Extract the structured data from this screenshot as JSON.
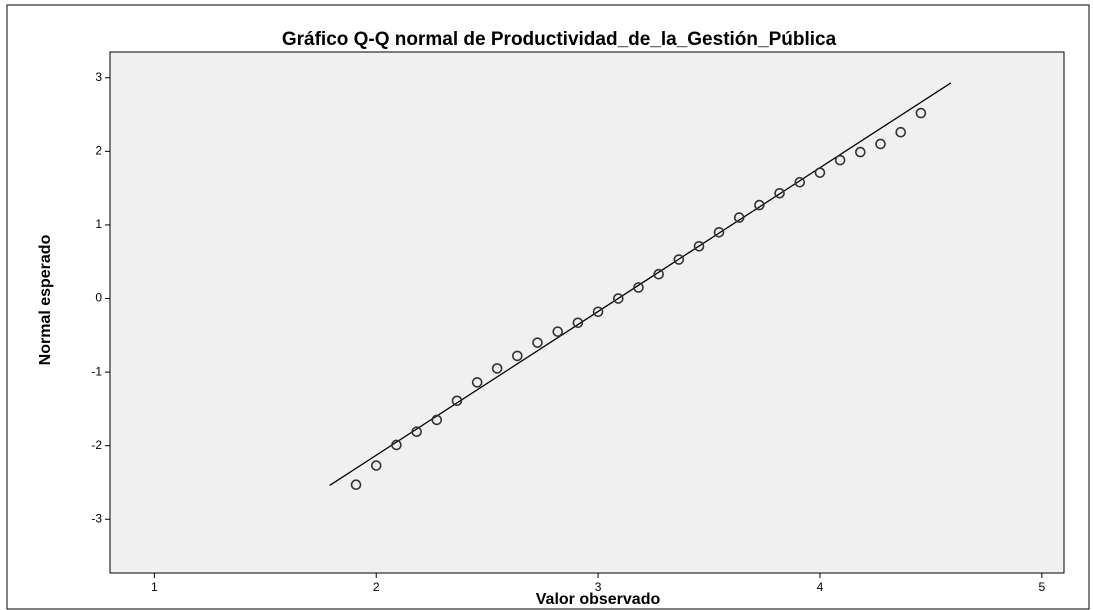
{
  "chart_data": {
    "type": "scatter",
    "title": "Gráfico Q-Q normal de Productividad_de_la_Gestión_Pública",
    "x_label": "Valor observado",
    "y_label": "Normal esperado",
    "x": [
      1.909,
      2.0,
      2.091,
      2.182,
      2.273,
      2.364,
      2.455,
      2.545,
      2.636,
      2.727,
      2.818,
      2.909,
      3.0,
      3.091,
      3.182,
      3.273,
      3.364,
      3.455,
      3.545,
      3.636,
      3.727,
      3.818,
      3.909,
      4.0,
      4.091,
      4.182,
      4.273,
      4.364,
      4.455
    ],
    "values": [
      -2.53,
      -2.27,
      -1.99,
      -1.81,
      -1.65,
      -1.39,
      -1.14,
      -0.95,
      -0.78,
      -0.6,
      -0.45,
      -0.33,
      -0.18,
      0,
      0.15,
      0.33,
      0.53,
      0.71,
      0.9,
      1.1,
      1.27,
      1.43,
      1.58,
      1.71,
      1.88,
      1.99,
      2.1,
      2.26,
      2.52
    ],
    "color": "#333333",
    "reference_line": {
      "x": [
        1.79,
        4.59
      ],
      "y": [
        -2.54,
        2.93
      ],
      "color": "#000000"
    },
    "xlim": [
      0.8,
      5.1
    ],
    "xticks": [
      1,
      2,
      3,
      4,
      5
    ],
    "ylim": [
      -3.73,
      3.35
    ],
    "yticks": [
      -3,
      -2,
      -1,
      0,
      1,
      2,
      3
    ],
    "grid": false
  }
}
